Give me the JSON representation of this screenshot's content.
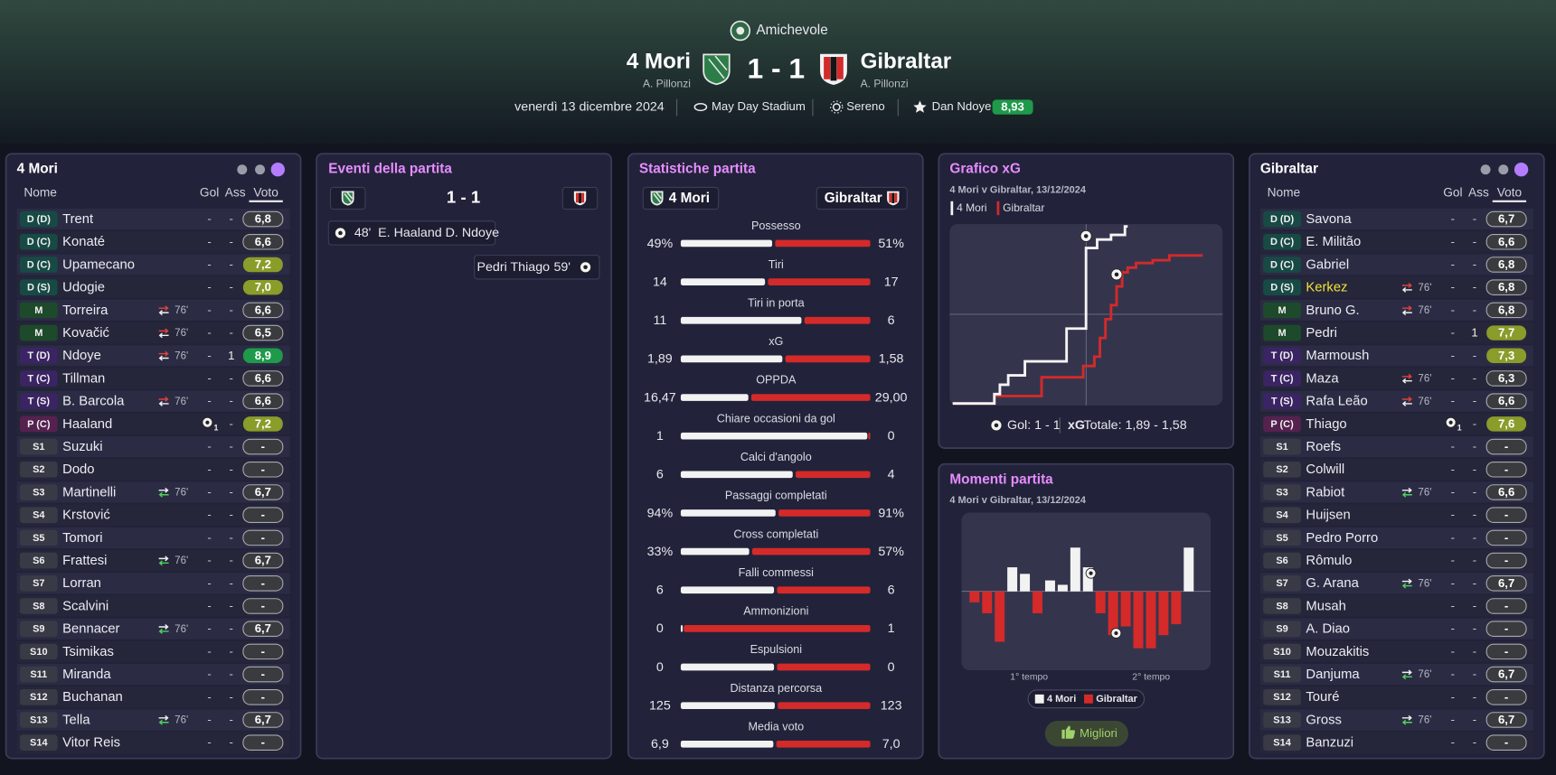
{
  "header": {
    "competition": "Amichevole",
    "home": {
      "name": "4 Mori",
      "manager": "A. Pillonzi"
    },
    "away": {
      "name": "Gibraltar",
      "manager": "A. Pillonzi"
    },
    "score": "1 - 1",
    "date": "venerdì 13 dicembre 2024",
    "stadium": "May Day Stadium",
    "weather": "Sereno",
    "player_of_match": "Dan Ndoye",
    "player_of_match_rating": "8,93"
  },
  "home_lineup": {
    "title": "4 Mori",
    "columns": [
      "Nome",
      "Gol",
      "Ass",
      "Voto"
    ],
    "players": [
      {
        "pos": "D (D)",
        "name": "Trent",
        "gol": "-",
        "ass": "-",
        "voto": "6,8"
      },
      {
        "pos": "D (C)",
        "name": "Konaté",
        "gol": "-",
        "ass": "-",
        "voto": "6,6"
      },
      {
        "pos": "D (C)",
        "name": "Upamecano",
        "gol": "-",
        "ass": "-",
        "voto": "7,2"
      },
      {
        "pos": "D (S)",
        "name": "Udogie",
        "gol": "-",
        "ass": "-",
        "voto": "7,0"
      },
      {
        "pos": "M",
        "name": "Torreira",
        "sub": "76'",
        "gol": "-",
        "ass": "-",
        "voto": "6,6"
      },
      {
        "pos": "M",
        "name": "Kovačić",
        "sub": "76'",
        "gol": "-",
        "ass": "-",
        "voto": "6,5"
      },
      {
        "pos": "T (D)",
        "name": "Ndoye",
        "sub": "76'",
        "gol": "-",
        "ass": "1",
        "voto": "8,9"
      },
      {
        "pos": "T (C)",
        "name": "Tillman",
        "gol": "-",
        "ass": "-",
        "voto": "6,6"
      },
      {
        "pos": "T (S)",
        "name": "B. Barcola",
        "sub": "76'",
        "gol": "-",
        "ass": "-",
        "voto": "6,6"
      },
      {
        "pos": "P (C)",
        "name": "Haaland",
        "gol": "1",
        "ass": "-",
        "voto": "7,2"
      },
      {
        "pos": "S1",
        "name": "Suzuki",
        "gol": "-",
        "ass": "-",
        "voto": "-"
      },
      {
        "pos": "S2",
        "name": "Dodo",
        "gol": "-",
        "ass": "-",
        "voto": "-"
      },
      {
        "pos": "S3",
        "name": "Martinelli",
        "sub": "76'",
        "gol": "-",
        "ass": "-",
        "voto": "6,7"
      },
      {
        "pos": "S4",
        "name": "Krstović",
        "gol": "-",
        "ass": "-",
        "voto": "-"
      },
      {
        "pos": "S5",
        "name": "Tomori",
        "gol": "-",
        "ass": "-",
        "voto": "-"
      },
      {
        "pos": "S6",
        "name": "Frattesi",
        "sub": "76'",
        "gol": "-",
        "ass": "-",
        "voto": "6,7"
      },
      {
        "pos": "S7",
        "name": "Lorran",
        "gol": "-",
        "ass": "-",
        "voto": "-"
      },
      {
        "pos": "S8",
        "name": "Scalvini",
        "gol": "-",
        "ass": "-",
        "voto": "-"
      },
      {
        "pos": "S9",
        "name": "Bennacer",
        "sub": "76'",
        "gol": "-",
        "ass": "-",
        "voto": "6,7"
      },
      {
        "pos": "S10",
        "name": "Tsimikas",
        "gol": "-",
        "ass": "-",
        "voto": "-"
      },
      {
        "pos": "S11",
        "name": "Miranda",
        "gol": "-",
        "ass": "-",
        "voto": "-"
      },
      {
        "pos": "S12",
        "name": "Buchanan",
        "gol": "-",
        "ass": "-",
        "voto": "-"
      },
      {
        "pos": "S13",
        "name": "Tella",
        "sub": "76'",
        "gol": "-",
        "ass": "-",
        "voto": "6,7"
      },
      {
        "pos": "S14",
        "name": "Vitor Reis",
        "gol": "-",
        "ass": "-",
        "voto": "-"
      }
    ]
  },
  "away_lineup": {
    "title": "Gibraltar",
    "columns": [
      "Nome",
      "Gol",
      "Ass",
      "Voto"
    ],
    "players": [
      {
        "pos": "D (D)",
        "name": "Savona",
        "gol": "-",
        "ass": "-",
        "voto": "6,7"
      },
      {
        "pos": "D (C)",
        "name": "E. Militão",
        "gol": "-",
        "ass": "-",
        "voto": "6,6"
      },
      {
        "pos": "D (C)",
        "name": "Gabriel",
        "gol": "-",
        "ass": "-",
        "voto": "6,8"
      },
      {
        "pos": "D (S)",
        "name": "Kerkez",
        "name_color": "#f2e23a",
        "sub": "76'",
        "gol": "-",
        "ass": "-",
        "voto": "6,8"
      },
      {
        "pos": "M",
        "name": "Bruno G.",
        "sub": "76'",
        "gol": "-",
        "ass": "-",
        "voto": "6,8"
      },
      {
        "pos": "M",
        "name": "Pedri",
        "gol": "-",
        "ass": "1",
        "voto": "7,7"
      },
      {
        "pos": "T (D)",
        "name": "Marmoush",
        "gol": "-",
        "ass": "-",
        "voto": "7,3"
      },
      {
        "pos": "T (C)",
        "name": "Maza",
        "sub": "76'",
        "gol": "-",
        "ass": "-",
        "voto": "6,3"
      },
      {
        "pos": "T (S)",
        "name": "Rafa Leão",
        "sub": "76'",
        "gol": "-",
        "ass": "-",
        "voto": "6,6"
      },
      {
        "pos": "P (C)",
        "name": "Thiago",
        "gol": "1",
        "ass": "-",
        "voto": "7,6"
      },
      {
        "pos": "S1",
        "name": "Roefs",
        "gol": "-",
        "ass": "-",
        "voto": "-"
      },
      {
        "pos": "S2",
        "name": "Colwill",
        "gol": "-",
        "ass": "-",
        "voto": "-"
      },
      {
        "pos": "S3",
        "name": "Rabiot",
        "sub": "76'",
        "gol": "-",
        "ass": "-",
        "voto": "6,6"
      },
      {
        "pos": "S4",
        "name": "Huijsen",
        "gol": "-",
        "ass": "-",
        "voto": "-"
      },
      {
        "pos": "S5",
        "name": "Pedro Porro",
        "gol": "-",
        "ass": "-",
        "voto": "-"
      },
      {
        "pos": "S6",
        "name": "Rômulo",
        "gol": "-",
        "ass": "-",
        "voto": "-"
      },
      {
        "pos": "S7",
        "name": "G. Arana",
        "sub": "76'",
        "gol": "-",
        "ass": "-",
        "voto": "6,7"
      },
      {
        "pos": "S8",
        "name": "Musah",
        "gol": "-",
        "ass": "-",
        "voto": "-"
      },
      {
        "pos": "S9",
        "name": "A. Diao",
        "gol": "-",
        "ass": "-",
        "voto": "-"
      },
      {
        "pos": "S10",
        "name": "Mouzakitis",
        "gol": "-",
        "ass": "-",
        "voto": "-"
      },
      {
        "pos": "S11",
        "name": "Danjuma",
        "sub": "76'",
        "gol": "-",
        "ass": "-",
        "voto": "6,7"
      },
      {
        "pos": "S12",
        "name": "Touré",
        "gol": "-",
        "ass": "-",
        "voto": "-"
      },
      {
        "pos": "S13",
        "name": "Gross",
        "sub": "76'",
        "gol": "-",
        "ass": "-",
        "voto": "6,7"
      },
      {
        "pos": "S14",
        "name": "Banzuzi",
        "gol": "-",
        "ass": "-",
        "voto": "-"
      }
    ]
  },
  "events": {
    "title": "Eventi della partita",
    "score": "1 - 1",
    "items": [
      {
        "side": "home",
        "minute": "48'",
        "names": "E. Haaland D. Ndoye"
      },
      {
        "side": "away",
        "minute": "59'",
        "names": "Pedri Thiago"
      }
    ]
  },
  "stats": {
    "title": "Statistiche partita",
    "home": "4 Mori",
    "away": "Gibraltar",
    "rows": [
      {
        "label": "Possesso",
        "home": 49,
        "away": 51,
        "home_label": "49%",
        "away_label": "51%"
      },
      {
        "label": "Tiri",
        "home": 14,
        "away": 17
      },
      {
        "label": "Tiri in porta",
        "home": 11,
        "away": 6
      },
      {
        "label": "xG",
        "home": 1.89,
        "away": 1.58,
        "home_label": "1,89",
        "away_label": "1,58"
      },
      {
        "label": "OPPDA",
        "home": 16.47,
        "away": 29.0,
        "home_label": "16,47",
        "away_label": "29,00"
      },
      {
        "label": "Chiare occasioni da gol",
        "home": 1,
        "away": 0
      },
      {
        "label": "Calci d'angolo",
        "home": 6,
        "away": 4
      },
      {
        "label": "Passaggi completati",
        "home": 94,
        "away": 91,
        "home_label": "94%",
        "away_label": "91%"
      },
      {
        "label": "Cross completati",
        "home": 33,
        "away": 57,
        "home_label": "33%",
        "away_label": "57%"
      },
      {
        "label": "Falli commessi",
        "home": 6,
        "away": 6
      },
      {
        "label": "Ammonizioni",
        "home": 0,
        "away": 1
      },
      {
        "label": "Espulsioni",
        "home": 0,
        "away": 0
      },
      {
        "label": "Distanza percorsa",
        "home": 125,
        "away": 123
      },
      {
        "label": "Media voto",
        "home": 6.9,
        "away": 7.0,
        "home_label": "6,9",
        "away_label": "7,0"
      }
    ]
  },
  "chart_data": [
    {
      "type": "line",
      "title": "Grafico xG",
      "subtitle": "4 Mori v Gibraltar, 13/12/2024",
      "xlim": [
        0,
        90
      ],
      "ylim": [
        0,
        2
      ],
      "series": [
        {
          "name": "4 Mori",
          "color": "#f4f4f4",
          "x": [
            0,
            15,
            17,
            20,
            26,
            41,
            48,
            52,
            57,
            62,
            63
          ],
          "values": [
            0,
            0.1,
            0.2,
            0.3,
            0.45,
            0.8,
            1.66,
            1.75,
            1.8,
            1.89,
            1.89
          ],
          "goals": [
            48
          ]
        },
        {
          "name": "Gibraltar",
          "color": "#d42a2a",
          "x": [
            0,
            15,
            32,
            47,
            51,
            53,
            55,
            57,
            59,
            61,
            63,
            66,
            72,
            78,
            90
          ],
          "values": [
            0,
            0.08,
            0.28,
            0.4,
            0.5,
            0.7,
            0.9,
            1.05,
            1.25,
            1.4,
            1.45,
            1.5,
            1.53,
            1.58,
            1.58
          ],
          "goals": [
            59
          ]
        }
      ],
      "footer": {
        "goals": "Gol: 1 - 1",
        "xg_label": "xG",
        "xg_total": "Totale: 1,89 - 1,58"
      }
    },
    {
      "type": "bar",
      "title": "Momenti partita",
      "subtitle": "4 Mori v Gibraltar, 13/12/2024",
      "ylim": [
        -1.8,
        1.8
      ],
      "series": [
        {
          "name": "4 Mori",
          "color": "#f2f2f2",
          "values": [
            null,
            null,
            null,
            0.55,
            0.4,
            null,
            0.25,
            0.15,
            1.0,
            0.55,
            null,
            null,
            null,
            null,
            null,
            null,
            null,
            1.0
          ],
          "goals": [
            9
          ]
        },
        {
          "name": "Gibraltar",
          "color": "#d42a2a",
          "values": [
            -0.25,
            -0.5,
            -1.15,
            null,
            null,
            -0.5,
            null,
            null,
            null,
            null,
            -0.5,
            -1.0,
            -0.8,
            -1.3,
            -1.3,
            -1.0,
            -0.75,
            null
          ],
          "goals": [
            11
          ]
        }
      ],
      "x_labels": [
        "1° tempo",
        "2° tempo"
      ],
      "button": "Migliori"
    }
  ]
}
